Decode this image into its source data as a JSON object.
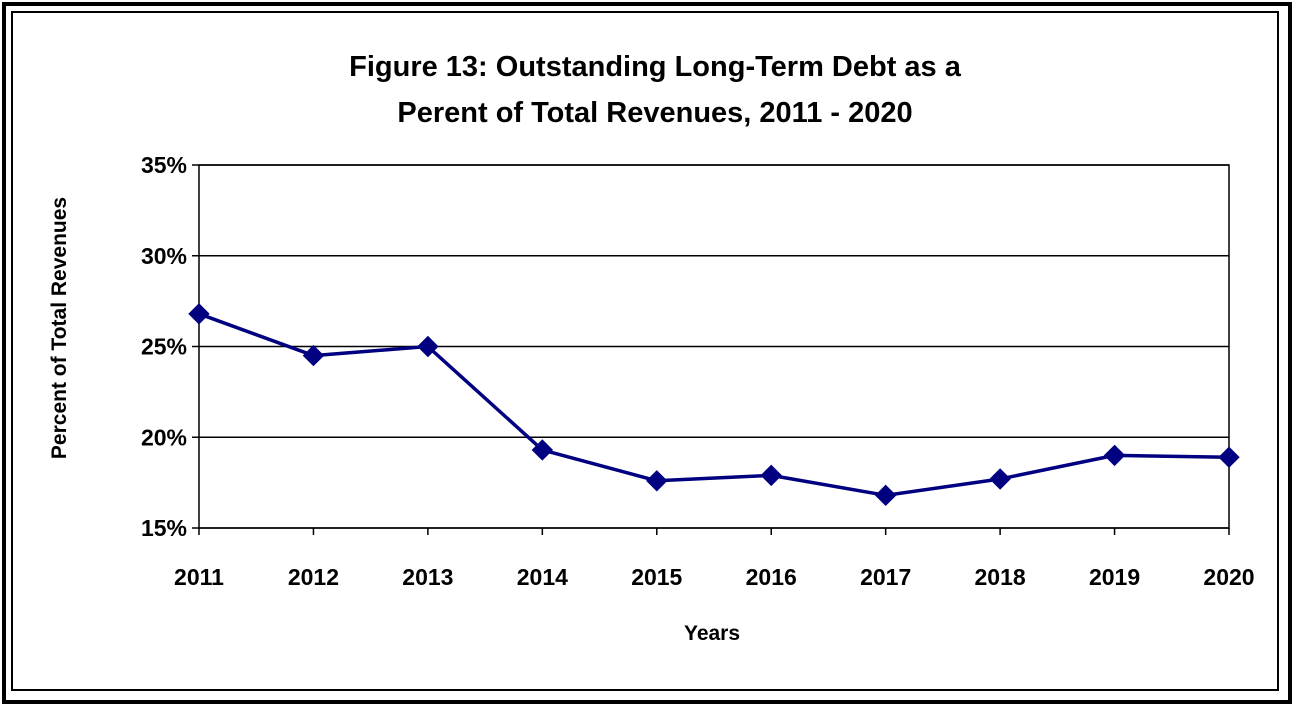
{
  "chart_data": {
    "type": "line",
    "title_lines": [
      "Figure 13:  Outstanding Long-Term Debt as a",
      "Perent of Total Revenues, 2011 - 2020"
    ],
    "xlabel": "Years",
    "ylabel": "Percent of Total Revenues",
    "categories": [
      "2011",
      "2012",
      "2013",
      "2014",
      "2015",
      "2016",
      "2017",
      "2018",
      "2019",
      "2020"
    ],
    "series": [
      {
        "values": [
          26.8,
          24.5,
          25.0,
          19.3,
          17.6,
          17.9,
          16.8,
          17.7,
          19.0,
          18.9
        ]
      }
    ],
    "ylim": [
      15,
      35
    ],
    "yticks": [
      15,
      20,
      25,
      30,
      35
    ],
    "ytick_labels": [
      "15%",
      "20%",
      "25%",
      "30%",
      "35%"
    ],
    "grid": true,
    "line_color": "#000080",
    "marker": "diamond"
  }
}
